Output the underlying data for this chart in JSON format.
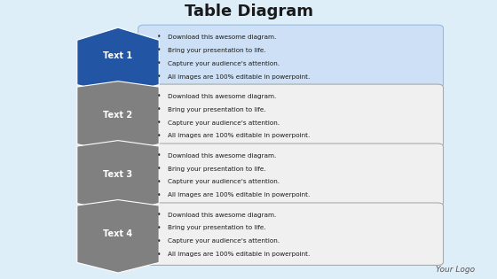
{
  "title": "Table Diagram",
  "title_fontsize": 13,
  "background_color": "#ddeef8",
  "rows": [
    {
      "label": "Text 1",
      "arrow_color": "#2255a4",
      "box_color": "#cde0f5",
      "box_border": "#99bbdd",
      "text_color": "#000000",
      "label_color": "#ffffff"
    },
    {
      "label": "Text 2",
      "arrow_color": "#808080",
      "box_color": "#f0f0f0",
      "box_border": "#aaaaaa",
      "text_color": "#000000",
      "label_color": "#ffffff"
    },
    {
      "label": "Text 3",
      "arrow_color": "#808080",
      "box_color": "#f0f0f0",
      "box_border": "#aaaaaa",
      "text_color": "#000000",
      "label_color": "#ffffff"
    },
    {
      "label": "Text 4",
      "arrow_color": "#808080",
      "box_color": "#f0f0f0",
      "box_border": "#aaaaaa",
      "text_color": "#000000",
      "label_color": "#ffffff"
    }
  ],
  "bullet_lines": [
    "Download this awesome diagram.",
    "Bring your presentation to life.",
    "Capture your audience's attention.",
    "All images are 100% editable in powerpoint."
  ],
  "footer": "Your Logo",
  "footer_fontsize": 6.5,
  "xlim": [
    0,
    10
  ],
  "ylim": [
    0,
    10
  ]
}
